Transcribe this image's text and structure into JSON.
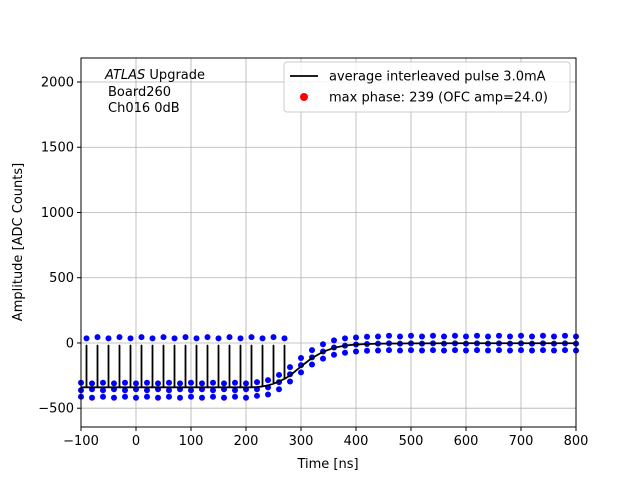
{
  "chart_data": {
    "type": "line",
    "annotation": {
      "experiment": "ATLAS",
      "line1": "Upgrade",
      "line2": "Board260",
      "line3": "Ch016 0dB"
    },
    "x_label": "Time [ns]",
    "y_label": "Amplitude [ADC Counts]",
    "xlim": [
      -100,
      800
    ],
    "ylim": [
      -644,
      2184
    ],
    "xticks": [
      {
        "value": -100,
        "label": "−100"
      },
      0,
      100,
      200,
      300,
      400,
      500,
      600,
      700,
      800
    ],
    "yticks": [
      {
        "value": -500,
        "label": "−500"
      },
      0,
      500,
      1000,
      1500,
      2000
    ],
    "grid": true,
    "legend": "upper right",
    "series": [
      {
        "name": "average interleaved pulse 3.0mA",
        "type": "line",
        "color": "#000000",
        "x": [
          -100,
          -90,
          -90,
          -90,
          -80,
          -70,
          -70,
          -70,
          -60,
          -50,
          -50,
          -50,
          -40,
          -30,
          -30,
          -30,
          -20,
          -10,
          -10,
          -10,
          0,
          10,
          10,
          10,
          20,
          30,
          30,
          30,
          40,
          50,
          50,
          50,
          60,
          70,
          70,
          70,
          80,
          90,
          90,
          90,
          100,
          110,
          110,
          110,
          120,
          130,
          130,
          130,
          140,
          150,
          150,
          150,
          160,
          170,
          170,
          170,
          180,
          190,
          190,
          190,
          200,
          210,
          210,
          210,
          220,
          230,
          230,
          230,
          240,
          250,
          250,
          250,
          260,
          270,
          270,
          270,
          280,
          300,
          320,
          340,
          360,
          380,
          400,
          420,
          450,
          500,
          600,
          700,
          800
        ],
        "values": [
          -340,
          -340,
          -20,
          -340,
          -340,
          -340,
          -20,
          -340,
          -340,
          -340,
          -20,
          -340,
          -340,
          -340,
          -20,
          -340,
          -340,
          -340,
          -20,
          -340,
          -340,
          -340,
          -20,
          -340,
          -340,
          -340,
          -20,
          -340,
          -340,
          -340,
          -20,
          -340,
          -340,
          -340,
          -20,
          -340,
          -340,
          -340,
          -20,
          -340,
          -340,
          -340,
          -20,
          -340,
          -340,
          -340,
          -20,
          -340,
          -340,
          -340,
          -20,
          -340,
          -340,
          -340,
          -20,
          -340,
          -340,
          -340,
          -20,
          -340,
          -340,
          -340,
          -20,
          -340,
          -338,
          -333,
          -20,
          -333,
          -325,
          -312,
          -20,
          -312,
          -295,
          -275,
          -20,
          -275,
          -250,
          -180,
          -115,
          -68,
          -37,
          -20,
          -12,
          -8,
          -5,
          -3,
          -2,
          -2,
          -2
        ]
      },
      {
        "name": "max phase: 239 (OFC amp=24.0)",
        "type": "scatter",
        "color": "#ff0000",
        "x": [],
        "values": []
      },
      {
        "type": "scatter",
        "color": "#0000ff",
        "x": [
          -100,
          -100,
          -100,
          -80,
          -80,
          -80,
          -60,
          -60,
          -60,
          -40,
          -40,
          -40,
          -20,
          -20,
          -20,
          0,
          0,
          0,
          20,
          20,
          20,
          40,
          40,
          40,
          60,
          60,
          60,
          80,
          80,
          80,
          100,
          100,
          100,
          120,
          120,
          120,
          140,
          140,
          140,
          160,
          160,
          160,
          180,
          180,
          180,
          200,
          200,
          200,
          220,
          220,
          220,
          240,
          240,
          240,
          260,
          260,
          260,
          280,
          280,
          280,
          300,
          300,
          300,
          320,
          320,
          320,
          340,
          340,
          340,
          360,
          360,
          360,
          380,
          380,
          380,
          400,
          400,
          400,
          420,
          420,
          420,
          440,
          440,
          440,
          460,
          460,
          460,
          480,
          480,
          480,
          500,
          500,
          500,
          520,
          520,
          520,
          540,
          540,
          540,
          560,
          560,
          560,
          580,
          580,
          580,
          600,
          600,
          600,
          620,
          620,
          620,
          640,
          640,
          640,
          660,
          660,
          660,
          680,
          680,
          680,
          700,
          700,
          700,
          720,
          720,
          720,
          740,
          740,
          740,
          760,
          760,
          760,
          780,
          780,
          780,
          800,
          800,
          800,
          -90,
          -70,
          -50,
          -30,
          -10,
          10,
          30,
          50,
          70,
          90,
          110,
          130,
          150,
          170,
          190,
          210,
          230,
          250,
          270
        ],
        "values": [
          -412,
          -362,
          -305,
          -420,
          -355,
          -310,
          -412,
          -362,
          -305,
          -420,
          -355,
          -310,
          -412,
          -362,
          -305,
          -420,
          -355,
          -310,
          -412,
          -362,
          -305,
          -420,
          -355,
          -310,
          -412,
          -362,
          -305,
          -420,
          -355,
          -310,
          -412,
          -362,
          -305,
          -420,
          -355,
          -310,
          -412,
          -362,
          -305,
          -420,
          -355,
          -310,
          -412,
          -362,
          -305,
          -420,
          -355,
          -310,
          -405,
          -355,
          -300,
          -395,
          -340,
          -285,
          -355,
          -300,
          -245,
          -295,
          -240,
          -185,
          -225,
          -170,
          -115,
          -165,
          -110,
          -55,
          -120,
          -65,
          -10,
          -90,
          -35,
          20,
          -75,
          -20,
          35,
          -65,
          -12,
          42,
          -60,
          -8,
          48,
          -58,
          -5,
          50,
          -55,
          -3,
          55,
          -58,
          -5,
          50,
          -55,
          -3,
          55,
          -58,
          -5,
          50,
          -55,
          -3,
          55,
          -58,
          -5,
          50,
          -55,
          -3,
          55,
          -58,
          -5,
          50,
          -55,
          -3,
          55,
          -58,
          -5,
          50,
          -55,
          -3,
          55,
          -58,
          -5,
          50,
          -55,
          -3,
          55,
          -58,
          -5,
          50,
          -55,
          -3,
          55,
          -58,
          -5,
          50,
          -55,
          -3,
          55,
          -58,
          -5,
          50,
          35,
          45,
          35,
          45,
          35,
          45,
          35,
          45,
          35,
          45,
          35,
          45,
          35,
          45,
          35,
          45,
          35,
          45,
          35
        ]
      }
    ]
  }
}
